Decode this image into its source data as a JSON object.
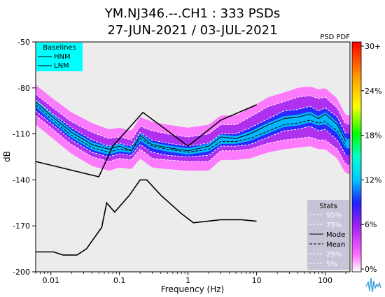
{
  "chart_data": {
    "type": "psd_pdf",
    "title_line1": "YM.NJ346.--.CH1 : 333 PSDs",
    "title_line2": "27-JUN-2021 / 03-JUL-2021",
    "xlabel": "Frequency (Hz)",
    "ylabel": "dB",
    "x_scale": "log",
    "xlim": [
      0.006,
      230
    ],
    "ylim": [
      -200,
      -50
    ],
    "x_ticks": [
      {
        "v": 0.01,
        "label": "0.01"
      },
      {
        "v": 0.1,
        "label": "0.1"
      },
      {
        "v": 1,
        "label": "1"
      },
      {
        "v": 10,
        "label": "10"
      },
      {
        "v": 100,
        "label": "100"
      }
    ],
    "y_ticks": [
      {
        "v": -50,
        "label": "-50"
      },
      {
        "v": -80,
        "label": "-80"
      },
      {
        "v": -110,
        "label": "-110"
      },
      {
        "v": -140,
        "label": "-140"
      },
      {
        "v": -170,
        "label": "-170"
      },
      {
        "v": -200,
        "label": "-200"
      }
    ],
    "colorbar": {
      "title": "PSD PDF",
      "ticks": [
        "30+",
        "24%",
        "18%",
        "12%",
        "6%",
        "0%"
      ]
    },
    "baselines_legend": {
      "title": "Baselines",
      "items": [
        "HNM",
        "LNM"
      ]
    },
    "stats_legend": {
      "title": "Stats",
      "items": [
        "95%",
        "75%",
        "Mode",
        "Mean",
        "25%",
        "5%"
      ]
    },
    "hnm": {
      "x": [
        0.006,
        0.05,
        0.08,
        0.22,
        1.0,
        3.0,
        10.0
      ],
      "y": [
        -128,
        -138,
        -118,
        -96,
        -118,
        -101,
        -91
      ]
    },
    "lnm": {
      "x": [
        0.006,
        0.011,
        0.015,
        0.024,
        0.033,
        0.055,
        0.065,
        0.085,
        0.14,
        0.2,
        0.25,
        0.4,
        0.8,
        1.2,
        3,
        6,
        10
      ],
      "y": [
        -187,
        -187,
        -189,
        -189,
        -185,
        -171,
        -155,
        -161,
        -150,
        -140,
        -140,
        -150,
        -162,
        -168,
        -166,
        -166,
        -167
      ]
    },
    "mode": {
      "x": [
        0.006,
        0.01,
        0.02,
        0.04,
        0.07,
        0.1,
        0.15,
        0.2,
        0.3,
        0.5,
        1,
        2,
        3,
        5,
        8,
        15,
        25,
        40,
        60,
        80,
        100,
        150,
        200
      ],
      "y": [
        -89,
        -98,
        -109,
        -117,
        -120,
        -118,
        -121,
        -111,
        -117,
        -119,
        -121,
        -118,
        -112,
        -113,
        -110,
        -104,
        -100,
        -99,
        -97,
        -100,
        -97,
        -104,
        -115
      ]
    },
    "mean": {
      "x": [
        0.006,
        0.01,
        0.02,
        0.04,
        0.07,
        0.1,
        0.15,
        0.2,
        0.3,
        0.5,
        1,
        2,
        3,
        5,
        8,
        15,
        25,
        40,
        60,
        80,
        100,
        150,
        200
      ],
      "y": [
        -91,
        -100,
        -111,
        -119,
        -122,
        -120,
        -121,
        -113,
        -118,
        -120,
        -122,
        -120,
        -115,
        -115,
        -113,
        -108,
        -104,
        -103,
        -101,
        -103,
        -102,
        -108,
        -118
      ]
    },
    "p95": {
      "x": [
        0.006,
        0.01,
        0.02,
        0.04,
        0.07,
        0.1,
        0.15,
        0.2,
        0.3,
        0.5,
        1,
        2,
        3,
        5,
        8,
        15,
        25,
        40,
        60,
        80,
        100,
        150,
        200
      ],
      "y": [
        -84,
        -92,
        -102,
        -109,
        -113,
        -112,
        -114,
        -105,
        -108,
        -110,
        -112,
        -110,
        -104,
        -104,
        -99,
        -92,
        -89,
        -86,
        -85,
        -87,
        -86,
        -93,
        -104
      ]
    },
    "p75": {
      "x": [
        0.006,
        0.01,
        0.02,
        0.04,
        0.07,
        0.1,
        0.15,
        0.2,
        0.3,
        0.5,
        1,
        2,
        3,
        5,
        8,
        15,
        25,
        40,
        60,
        80,
        100,
        150,
        200
      ],
      "y": [
        -88,
        -96,
        -106,
        -114,
        -118,
        -116,
        -118,
        -109,
        -114,
        -116,
        -118,
        -116,
        -110,
        -110,
        -106,
        -100,
        -95,
        -94,
        -92,
        -95,
        -93,
        -99,
        -110
      ]
    },
    "p25": {
      "x": [
        0.006,
        0.01,
        0.02,
        0.04,
        0.07,
        0.1,
        0.15,
        0.2,
        0.3,
        0.5,
        1,
        2,
        3,
        5,
        8,
        15,
        25,
        40,
        60,
        80,
        100,
        150,
        200
      ],
      "y": [
        -95,
        -103,
        -114,
        -122,
        -125,
        -123,
        -124,
        -117,
        -122,
        -124,
        -125,
        -124,
        -118,
        -118,
        -117,
        -112,
        -108,
        -107,
        -105,
        -108,
        -107,
        -114,
        -124
      ]
    },
    "p5": {
      "x": [
        0.006,
        0.01,
        0.02,
        0.04,
        0.07,
        0.1,
        0.15,
        0.2,
        0.3,
        0.5,
        1,
        2,
        3,
        5,
        8,
        15,
        25,
        40,
        60,
        80,
        100,
        150,
        200
      ],
      "y": [
        -98,
        -106,
        -117,
        -125,
        -128,
        -126,
        -127,
        -120,
        -126,
        -127,
        -128,
        -128,
        -121,
        -121,
        -120,
        -116,
        -114,
        -113,
        -112,
        -114,
        -114,
        -120,
        -130
      ]
    }
  }
}
